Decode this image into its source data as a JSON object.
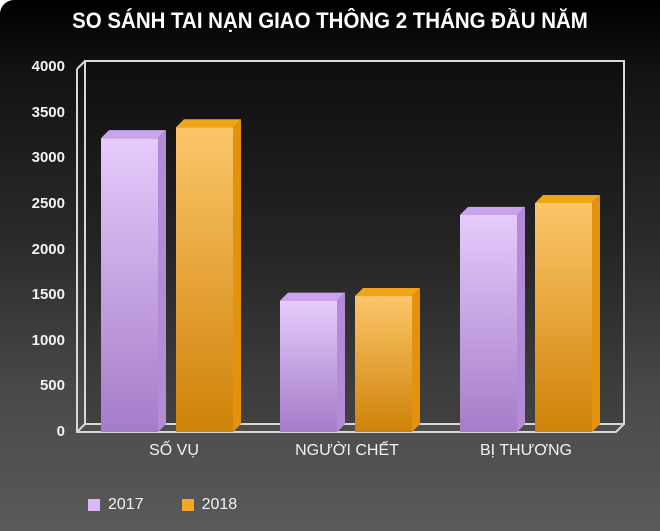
{
  "chart_data": {
    "type": "bar",
    "title": "SO SÁNH TAI NẠN GIAO THÔNG 2 THÁNG ĐẦU NĂM",
    "categories": [
      "SỐ VỤ",
      "NGƯỜI CHẾT",
      "BỊ THƯƠNG"
    ],
    "series": [
      {
        "name": "2017",
        "color": "#d9b8f5",
        "values": [
          3220,
          1440,
          2380
        ]
      },
      {
        "name": "2018",
        "color": "#f5a623",
        "values": [
          3340,
          1490,
          2510
        ]
      }
    ],
    "xlabel": "",
    "ylabel": "",
    "ylim": [
      0,
      4000
    ],
    "yticks": [
      "4000",
      "3500",
      "3000",
      "2500",
      "2000",
      "1500",
      "1000",
      "500",
      "0"
    ],
    "grid": false,
    "legend_position": "bottom-left",
    "style": "3d-column"
  },
  "header": {
    "title": "SO SÁNH TAI NẠN GIAO THÔNG 2 THÁNG ĐẦU NĂM"
  },
  "legend": {
    "items": [
      {
        "label": "2017",
        "color": "#d9b8f5"
      },
      {
        "label": "2018",
        "color": "#f5a623"
      }
    ]
  }
}
